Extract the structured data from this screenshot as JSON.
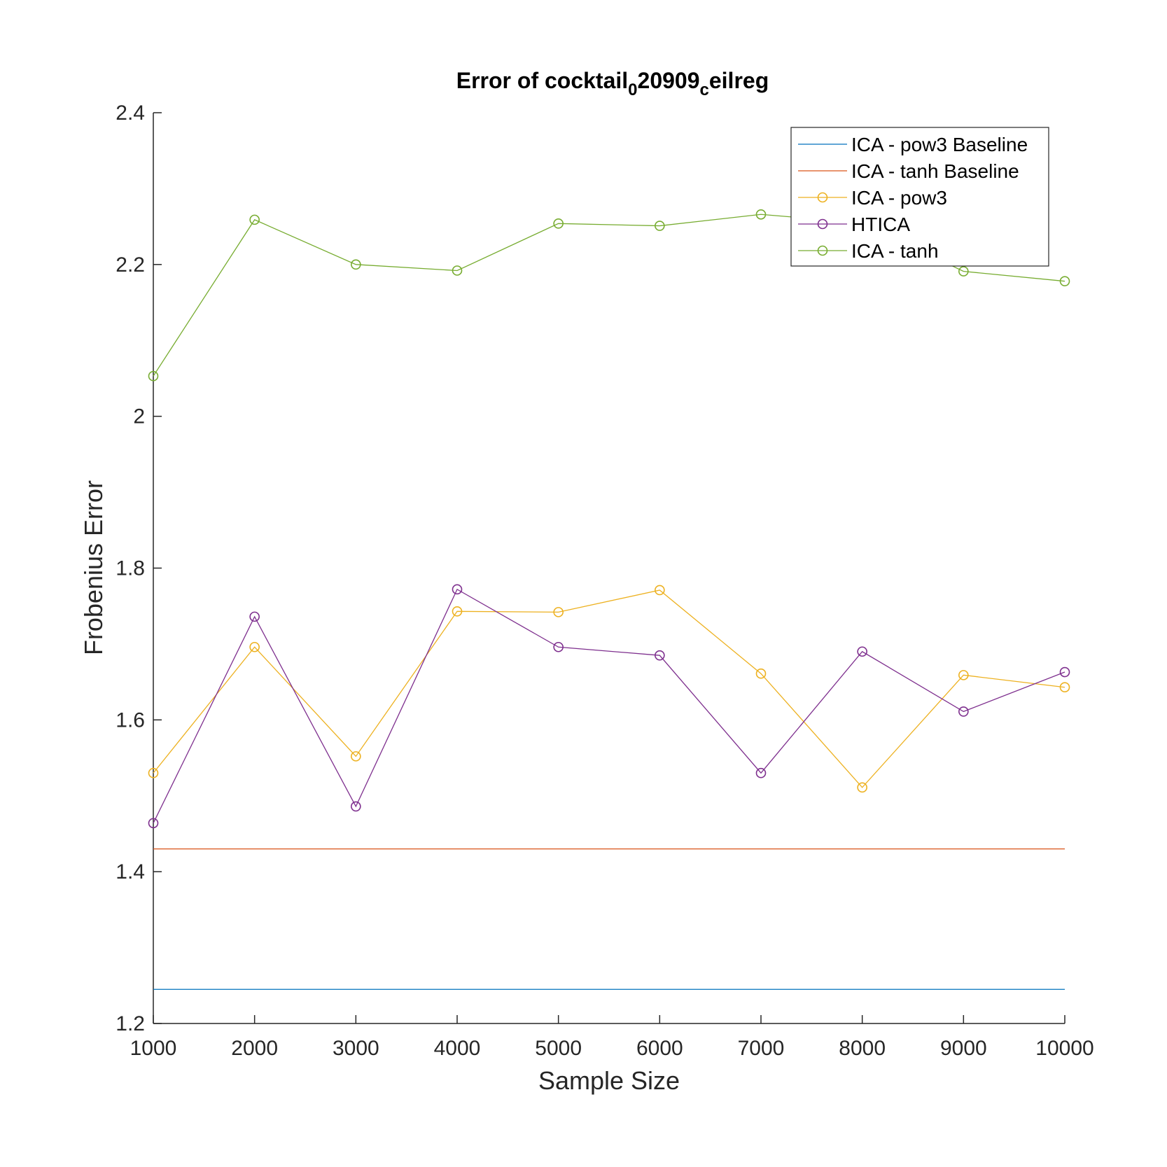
{
  "chart_data": {
    "type": "line",
    "title": "Error of cocktail",
    "title_sub1": "0",
    "title_mid": "20909",
    "title_sub2": "c",
    "title_end": "eilreg",
    "xlabel": "Sample Size",
    "ylabel": "Frobenius Error",
    "x": [
      1000,
      2000,
      3000,
      4000,
      5000,
      6000,
      7000,
      8000,
      9000,
      10000
    ],
    "xlim": [
      1000,
      10000
    ],
    "ylim": [
      1.2,
      2.4
    ],
    "xticks": [
      "1000",
      "2000",
      "3000",
      "4000",
      "5000",
      "6000",
      "7000",
      "8000",
      "9000",
      "10000"
    ],
    "yticks": [
      "1.2",
      "1.4",
      "1.6",
      "1.8",
      "2",
      "2.2",
      "2.4"
    ],
    "ytick_values": [
      1.2,
      1.4,
      1.6,
      1.8,
      2.0,
      2.2,
      2.4
    ],
    "grid": false,
    "legend_position": "top-right",
    "series": [
      {
        "name": "ICA - pow3 Baseline",
        "color": "#0072BD",
        "marker": "none",
        "values": [
          1.245,
          1.245,
          1.245,
          1.245,
          1.245,
          1.245,
          1.245,
          1.245,
          1.245,
          1.245
        ]
      },
      {
        "name": "ICA - tanh Baseline",
        "color": "#D95319",
        "marker": "none",
        "values": [
          1.43,
          1.43,
          1.43,
          1.43,
          1.43,
          1.43,
          1.43,
          1.43,
          1.43,
          1.43
        ]
      },
      {
        "name": "ICA - pow3",
        "color": "#EDB120",
        "marker": "circle",
        "values": [
          1.53,
          1.696,
          1.552,
          1.743,
          1.742,
          1.771,
          1.661,
          1.511,
          1.659,
          1.643
        ]
      },
      {
        "name": "HTICA",
        "color": "#7E2F8E",
        "marker": "circle",
        "values": [
          1.464,
          1.736,
          1.486,
          1.772,
          1.696,
          1.685,
          1.53,
          1.69,
          1.611,
          1.663
        ]
      },
      {
        "name": "ICA - tanh",
        "color": "#77AC30",
        "marker": "circle",
        "values": [
          2.053,
          2.259,
          2.2,
          2.192,
          2.254,
          2.251,
          2.266,
          2.255,
          2.191,
          2.178
        ]
      }
    ]
  }
}
